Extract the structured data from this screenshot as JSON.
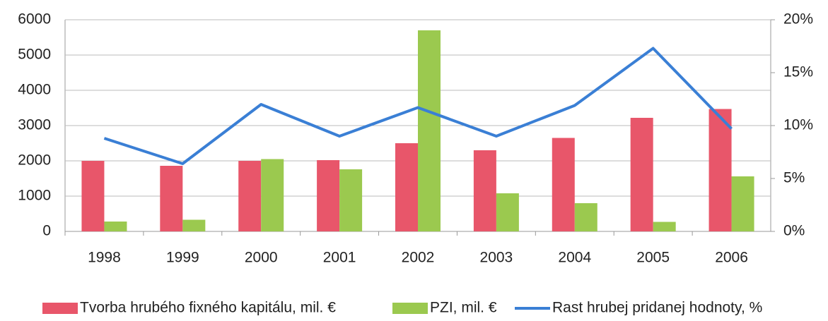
{
  "chart_data": {
    "type": "bar+line",
    "categories": [
      "1998",
      "1999",
      "2000",
      "2001",
      "2002",
      "2003",
      "2004",
      "2005",
      "2006"
    ],
    "series": [
      {
        "name": "Tvorba hrubého fixného kapitálu, mil. €",
        "color": "#e8566a",
        "type": "bar",
        "values": [
          2000,
          1860,
          2000,
          2020,
          2500,
          2300,
          2650,
          3220,
          3470
        ]
      },
      {
        "name": "PZI, mil. €",
        "color": "#9bc94f",
        "type": "bar",
        "values": [
          280,
          330,
          2050,
          1760,
          5700,
          1080,
          800,
          270,
          1560
        ]
      },
      {
        "name": "Rast hrubej pridanej hodnoty, %",
        "color": "#3a7fd5",
        "type": "line",
        "axis": "y2",
        "values": [
          8.8,
          6.4,
          12.0,
          9.0,
          11.7,
          9.0,
          11.9,
          17.3,
          9.7
        ]
      }
    ],
    "ylim": [
      0,
      6000
    ],
    "yticks": [
      0,
      1000,
      2000,
      3000,
      4000,
      5000,
      6000
    ],
    "y2lim": [
      0,
      20
    ],
    "y2ticks": [
      {
        "value": 0,
        "label": "0%"
      },
      {
        "value": 5,
        "label": "5%"
      },
      {
        "value": 10,
        "label": "10%"
      },
      {
        "value": 15,
        "label": "15%"
      },
      {
        "value": 20,
        "label": "20%"
      }
    ],
    "grid": true,
    "legend": "bottom"
  }
}
